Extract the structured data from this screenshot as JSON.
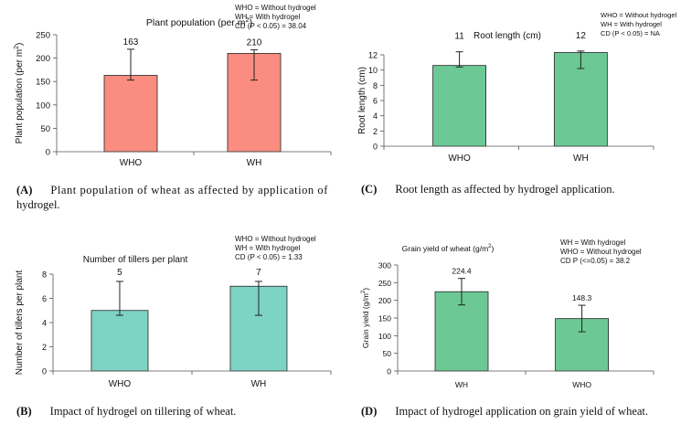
{
  "chart_data": [
    {
      "panel": "A",
      "type": "bar",
      "title": "Plant population (per m",
      "title_sup": "2",
      "title_end": ")",
      "ylabel": "Plant population (per m",
      "ylabel_sup": "2",
      "ylabel_end": ")",
      "xlabel": "",
      "categories": [
        "WHO",
        "WH"
      ],
      "values": [
        163,
        210
      ],
      "value_labels": [
        "163",
        "210"
      ],
      "error_low": [
        153,
        153
      ],
      "error_high": [
        219,
        218
      ],
      "ylim": [
        0,
        250
      ],
      "yticks": [
        0,
        50,
        100,
        150,
        200,
        250
      ],
      "color": "#fa8d80",
      "legend_lines": [
        "WHO = Without hydrogel",
        "WH = With hydrogel",
        "CD (P < 0.05) = 38.04"
      ],
      "grid": false
    },
    {
      "panel": "C",
      "type": "bar",
      "title": "Root length (cm)",
      "ylabel": "Root length (cm)",
      "xlabel": "",
      "categories": [
        "WHO",
        "WH"
      ],
      "values": [
        10.6,
        12.3
      ],
      "value_labels": [
        "11",
        "12"
      ],
      "error_low": [
        10.4,
        10.2
      ],
      "error_high": [
        12.4,
        12.5
      ],
      "ylim": [
        0,
        12
      ],
      "yticks": [
        0,
        2,
        4,
        6,
        8,
        10,
        12
      ],
      "color": "#6cc995",
      "legend_lines": [
        "WHO = Without hydrogel",
        "WH = With hydrogel",
        "CD (P < 0.05) = NA"
      ],
      "grid": false
    },
    {
      "panel": "B",
      "type": "bar",
      "title": "Number of tillers per plant",
      "ylabel": "Number of tillers per plant",
      "xlabel": "",
      "categories": [
        "WHO",
        "WH"
      ],
      "values": [
        5,
        7
      ],
      "value_labels": [
        "5",
        "7"
      ],
      "error_low": [
        4.6,
        4.6
      ],
      "error_high": [
        7.4,
        7.4
      ],
      "ylim": [
        0,
        8
      ],
      "yticks": [
        0,
        2,
        4,
        6,
        8
      ],
      "color": "#7dd4c4",
      "legend_lines": [
        "WHO = Without hydrogel",
        "WH = With hydrogel",
        "CD (P < 0.05) =  1.33"
      ],
      "grid": false
    },
    {
      "panel": "D",
      "type": "bar",
      "title": "Grain yield of wheat (g/m",
      "title_sup": "2",
      "title_end": ")",
      "ylabel": "Grain yield (g/m",
      "ylabel_sup": "2",
      "ylabel_end": ")",
      "xlabel": "",
      "categories": [
        "WH",
        "WHO"
      ],
      "values": [
        224.4,
        148.3
      ],
      "value_labels": [
        "224.4",
        "148.3"
      ],
      "error_low": [
        187,
        111
      ],
      "error_high": [
        262,
        186
      ],
      "ylim": [
        0,
        300
      ],
      "yticks": [
        0,
        50,
        100,
        150,
        200,
        250,
        300
      ],
      "color": "#6cc995",
      "legend_lines": [
        "WH = With hydrogel",
        "WHO = Without hydrogel",
        "CD P (<=0.05) = 38.2"
      ],
      "grid": false
    }
  ],
  "captions": {
    "A": {
      "letter": "(A)",
      "text": "Plant population of wheat as affected by application of",
      "text2": "hydrogel."
    },
    "C": {
      "letter": "(C)",
      "text": "Root length as affected by hydrogel application."
    },
    "B": {
      "letter": "(B)",
      "text": "Impact of hydrogel on tillering of wheat."
    },
    "D": {
      "letter": "(D)",
      "text": "Impact of hydrogel application on grain yield of wheat."
    }
  }
}
